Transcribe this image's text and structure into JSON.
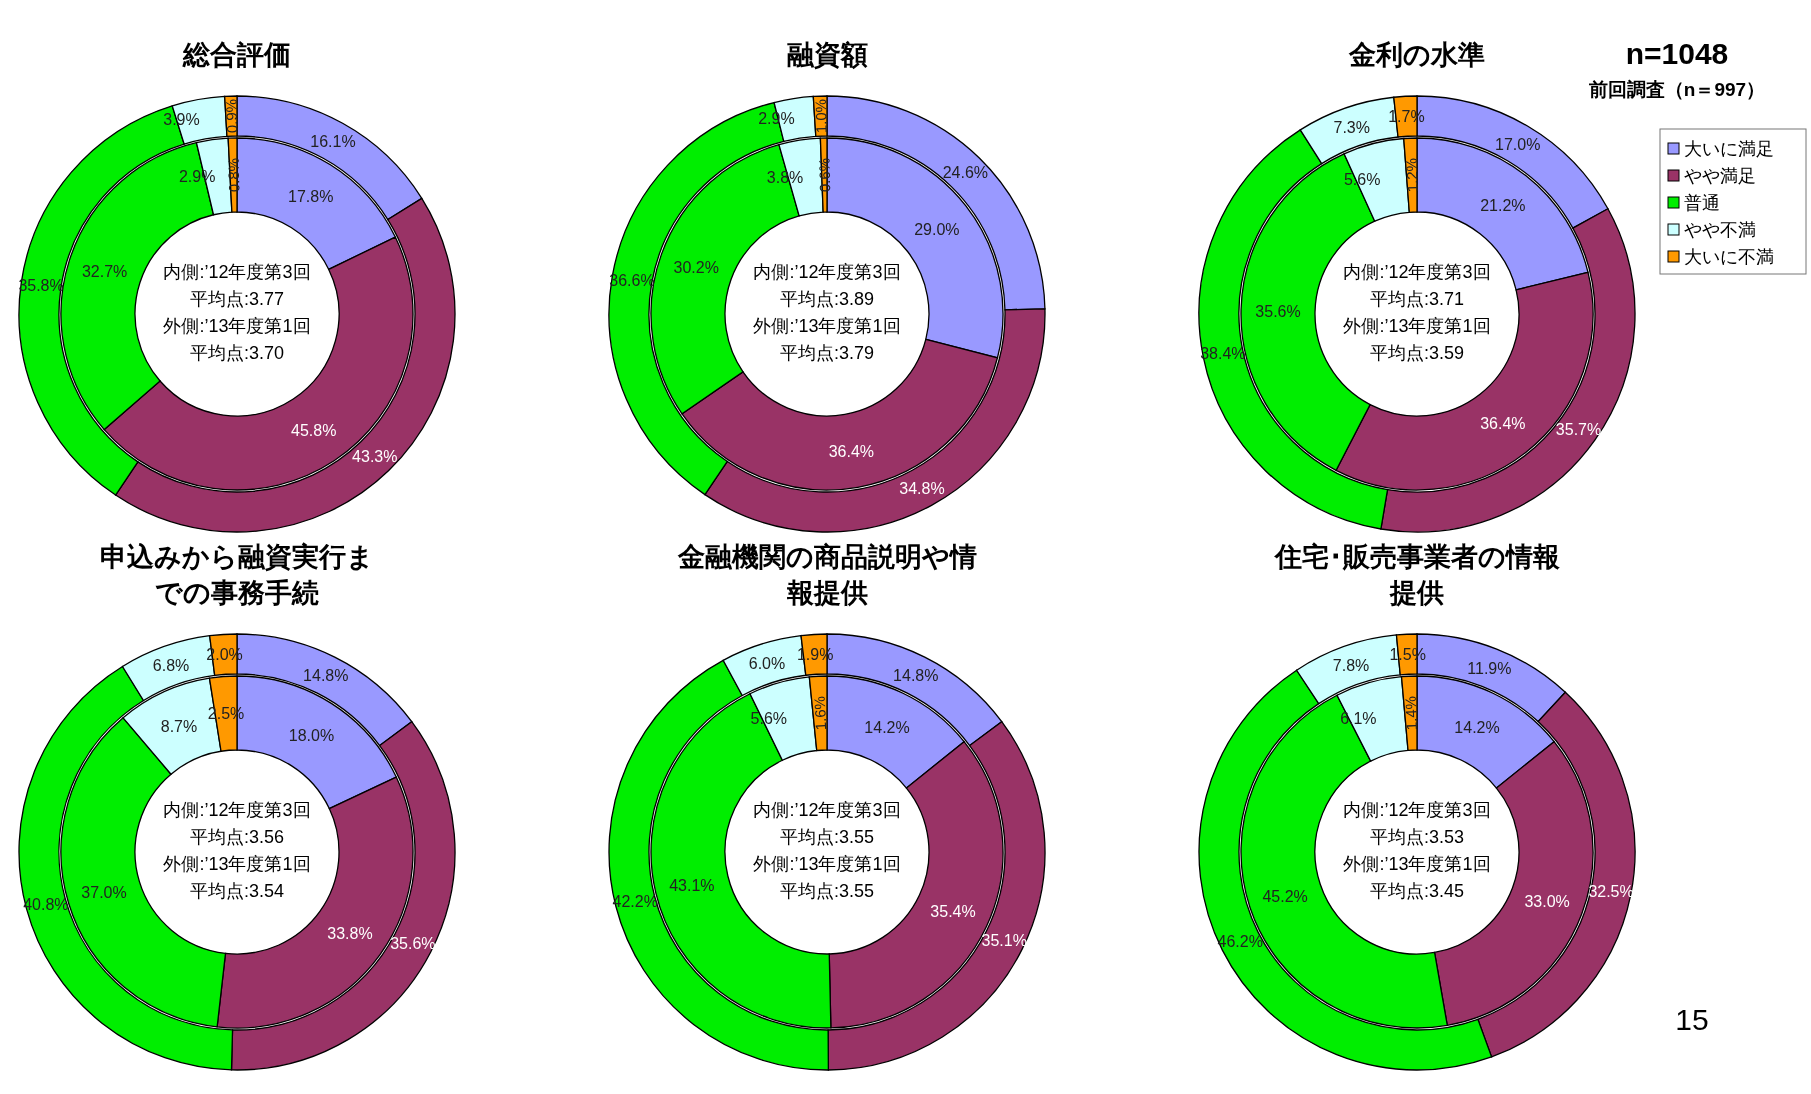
{
  "chart_data": [
    {
      "type": "donut",
      "title": "総合評価",
      "categories": [
        null,
        null,
        null,
        null,
        null
      ],
      "colors": [
        "#9999ff",
        "#993366",
        "#00ee00",
        "#ccffff",
        "#ff9900"
      ],
      "series": [
        {
          "values": [
            17.8,
            45.8,
            32.7,
            2.9,
            0.8
          ],
          "value_labels": [
            "17.8%",
            "45.8%",
            "32.7%",
            "2.9%",
            "0.8%"
          ]
        },
        {
          "values": [
            16.1,
            43.3,
            35.8,
            3.9,
            0.9
          ],
          "value_labels": [
            "16.1%",
            "43.3%",
            "35.8%",
            "3.9%",
            "0.9%"
          ]
        }
      ],
      "annotations": [
        "内側:’12年度第3回",
        "平均点:3.77",
        "外側:’13年度第1回",
        "平均点:3.70"
      ]
    },
    {
      "type": "donut",
      "title": "融資額",
      "categories": [
        null,
        null,
        null,
        null,
        null
      ],
      "colors": [
        "#9999ff",
        "#993366",
        "#00ee00",
        "#ccffff",
        "#ff9900"
      ],
      "series": [
        {
          "values": [
            29.0,
            36.4,
            30.2,
            3.8,
            0.6
          ],
          "value_labels": [
            "29.0%",
            "36.4%",
            "30.2%",
            "3.8%",
            "0.6%"
          ]
        },
        {
          "values": [
            24.6,
            34.8,
            36.6,
            2.9,
            1.0
          ],
          "value_labels": [
            "24.6%",
            "34.8%",
            "36.6%",
            "2.9%",
            "1.0%"
          ]
        }
      ],
      "annotations": [
        "内側:’12年度第3回",
        "平均点:3.89",
        "外側:’13年度第1回",
        "平均点:3.79"
      ]
    },
    {
      "type": "donut",
      "title": "金利の水準",
      "subtitle": "n=1048",
      "categories": [
        "大いに満足",
        "やや満足",
        "普通",
        "やや不満",
        "大いに不満"
      ],
      "colors": [
        "#9999ff",
        "#993366",
        "#00ee00",
        "#ccffff",
        "#ff9900"
      ],
      "legend": "right",
      "series": [
        {
          "values": [
            21.2,
            36.4,
            35.6,
            5.6,
            1.2
          ],
          "value_labels": [
            "21.2%",
            "36.4%",
            "35.6%",
            "5.6%",
            "1.2%"
          ]
        },
        {
          "values": [
            17.0,
            35.7,
            38.4,
            7.3,
            1.7
          ],
          "value_labels": [
            "17.0%",
            "35.7%",
            "38.4%",
            "7.3%",
            "1.7%"
          ]
        }
      ],
      "annotations": [
        "内側:’12年度第3回",
        "平均点:3.71",
        "外側:’13年度第1回",
        "平均点:3.59",
        "前回調査（n＝997）"
      ]
    },
    {
      "type": "donut",
      "title": "申込みから融資実行までの事務手続",
      "categories": [
        null,
        null,
        null,
        null,
        null
      ],
      "colors": [
        "#9999ff",
        "#993366",
        "#00ee00",
        "#ccffff",
        "#ff9900"
      ],
      "series": [
        {
          "values": [
            18.0,
            33.8,
            37.0,
            8.7,
            2.5
          ],
          "value_labels": [
            "18.0%",
            "33.8%",
            "37.0%",
            "8.7%",
            "2.5%"
          ]
        },
        {
          "values": [
            14.8,
            35.6,
            40.8,
            6.8,
            2.0
          ],
          "value_labels": [
            "14.8%",
            "35.6%",
            "40.8%",
            "6.8%",
            "2.0%"
          ]
        }
      ],
      "annotations": [
        "内側:’12年度第3回",
        "平均点:3.56",
        "外側:’13年度第1回",
        "平均点:3.54"
      ]
    },
    {
      "type": "donut",
      "title": "金融機関の商品説明や情報提供",
      "categories": [
        null,
        null,
        null,
        null,
        null
      ],
      "colors": [
        "#9999ff",
        "#993366",
        "#00ee00",
        "#ccffff",
        "#ff9900"
      ],
      "series": [
        {
          "values": [
            14.2,
            35.4,
            43.1,
            5.6,
            1.6
          ],
          "value_labels": [
            "14.2%",
            "35.4%",
            "43.1%",
            "5.6%",
            "1.6%"
          ]
        },
        {
          "values": [
            14.8,
            35.1,
            42.2,
            6.0,
            1.9
          ],
          "value_labels": [
            "14.8%",
            "35.1%",
            "42.2%",
            "6.0%",
            "1.9%"
          ]
        }
      ],
      "annotations": [
        "内側:’12年度第3回",
        "平均点:3.55",
        "外側:’13年度第1回",
        "平均点:3.55"
      ]
    },
    {
      "type": "donut",
      "title": "住宅･販売事業者の情報提供",
      "categories": [
        null,
        null,
        null,
        null,
        null
      ],
      "colors": [
        "#9999ff",
        "#993366",
        "#00ee00",
        "#ccffff",
        "#ff9900"
      ],
      "series": [
        {
          "values": [
            14.2,
            33.0,
            45.2,
            6.1,
            1.4
          ],
          "value_labels": [
            "14.2%",
            "33.0%",
            "45.2%",
            "6.1%",
            "1.4%"
          ]
        },
        {
          "values": [
            11.9,
            32.5,
            46.2,
            7.8,
            1.5
          ],
          "value_labels": [
            "11.9%",
            "32.5%",
            "46.2%",
            "7.8%",
            "1.5%"
          ]
        }
      ],
      "annotations": [
        "内側:’12年度第3回",
        "平均点:3.53",
        "外側:’13年度第1回",
        "平均点:3.45",
        "15"
      ]
    }
  ]
}
